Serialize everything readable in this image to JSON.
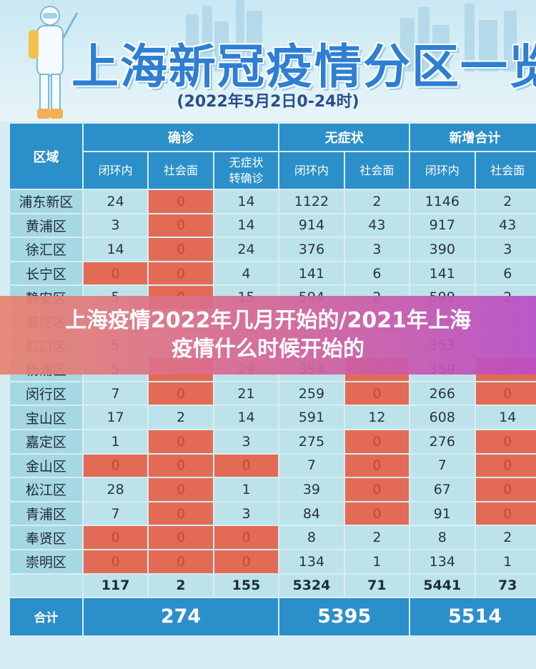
{
  "header": {
    "title": "上海新冠疫情分区一览",
    "subtitle": "(2022年5月2日0-24时)"
  },
  "table": {
    "area_header": "区域",
    "groups": [
      "确诊",
      "无症状",
      "新增合计"
    ],
    "subheaders": [
      "闭环内",
      "社会面",
      "无症状\n转确诊",
      "闭环内",
      "社会面",
      "闭环内",
      "社会面"
    ],
    "subheader_confirm3_line1": "无症状",
    "subheader_confirm3_line2": "转确诊",
    "rows": [
      {
        "name": "浦东新区",
        "cells": [
          "24",
          "0",
          "14",
          "1122",
          "2",
          "1146",
          "2"
        ]
      },
      {
        "name": "黄浦区",
        "cells": [
          "3",
          "0",
          "14",
          "914",
          "43",
          "917",
          "43"
        ]
      },
      {
        "name": "徐汇区",
        "cells": [
          "14",
          "0",
          "24",
          "376",
          "3",
          "390",
          "3"
        ]
      },
      {
        "name": "长宁区",
        "cells": [
          "0",
          "0",
          "4",
          "141",
          "6",
          "141",
          "6"
        ]
      },
      {
        "name": "静安区",
        "cells": [
          "5",
          "0",
          "15",
          "594",
          "2",
          "599",
          "2"
        ]
      },
      {
        "name": "普陀区",
        "cells": [
          "",
          "",
          "",
          "",
          "",
          "",
          ""
        ]
      },
      {
        "name": "虹口区",
        "cells": [
          "5",
          "",
          "",
          "",
          "",
          "353",
          ""
        ]
      },
      {
        "name": "杨浦区",
        "cells": [
          "5",
          "0",
          "29",
          "354",
          "0",
          "359",
          "0"
        ]
      },
      {
        "name": "闵行区",
        "cells": [
          "7",
          "0",
          "21",
          "259",
          "0",
          "266",
          "0"
        ]
      },
      {
        "name": "宝山区",
        "cells": [
          "17",
          "2",
          "14",
          "591",
          "12",
          "608",
          "14"
        ]
      },
      {
        "name": "嘉定区",
        "cells": [
          "1",
          "0",
          "3",
          "275",
          "0",
          "276",
          "0"
        ]
      },
      {
        "name": "金山区",
        "cells": [
          "0",
          "0",
          "0",
          "7",
          "0",
          "7",
          "0"
        ]
      },
      {
        "name": "松江区",
        "cells": [
          "28",
          "0",
          "1",
          "39",
          "0",
          "67",
          "0"
        ]
      },
      {
        "name": "青浦区",
        "cells": [
          "7",
          "0",
          "3",
          "84",
          "0",
          "91",
          "0"
        ]
      },
      {
        "name": "奉贤区",
        "cells": [
          "0",
          "0",
          "0",
          "8",
          "2",
          "8",
          "2"
        ]
      },
      {
        "name": "崇明区",
        "cells": [
          "0",
          "0",
          "0",
          "134",
          "1",
          "134",
          "1"
        ]
      }
    ],
    "sums": [
      "117",
      "2",
      "155",
      "5324",
      "71",
      "5441",
      "73"
    ],
    "total_label": "合计",
    "totals": [
      "274",
      "5395",
      "5514"
    ]
  },
  "banner": {
    "line1": "上海疫情2022年几月开始的/2021年上海",
    "line2": "疫情什么时候开始的"
  },
  "colors": {
    "header_blue": "#2b8fc9",
    "cell_bg": "#bde3ea",
    "zero_red": "#e36b55",
    "title_blue": "#2e7fd3"
  }
}
